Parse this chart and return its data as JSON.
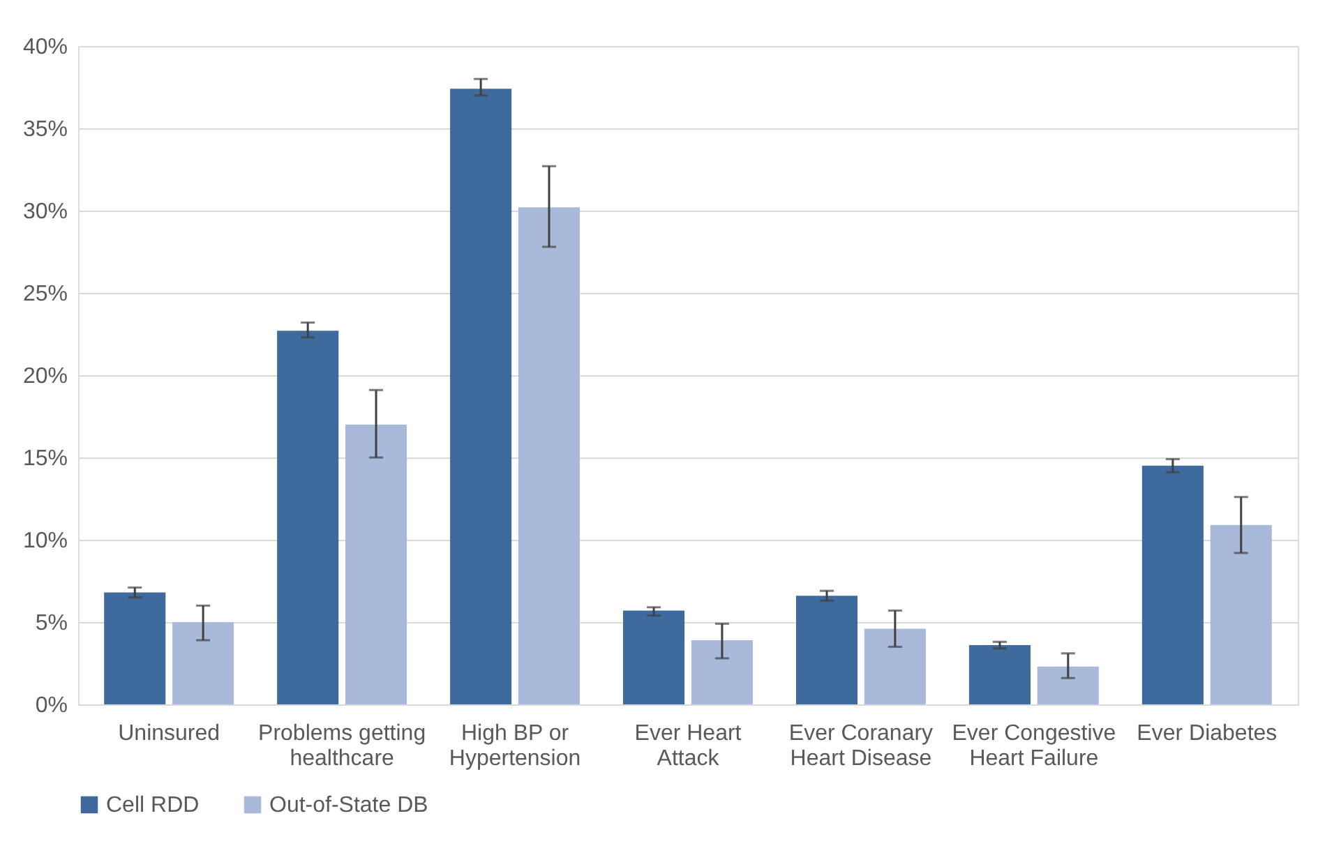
{
  "chart_data": {
    "type": "bar",
    "categories": [
      "Uninsured",
      "Problems getting healthcare",
      "High BP or Hypertension",
      "Ever Heart Attack",
      "Ever Coranary Heart Disease",
      "Ever Congestive Heart Failure",
      "Ever Diabetes"
    ],
    "series": [
      {
        "name": "Cell RDD",
        "color": "#3e6a9e",
        "values": [
          6.8,
          22.7,
          37.4,
          5.7,
          6.6,
          3.6,
          14.5
        ],
        "errors": [
          [
            6.5,
            7.1
          ],
          [
            22.3,
            23.2
          ],
          [
            37.0,
            38.0
          ],
          [
            5.4,
            5.9
          ],
          [
            6.3,
            6.9
          ],
          [
            3.4,
            3.8
          ],
          [
            14.1,
            14.9
          ]
        ]
      },
      {
        "name": "Out-of-State DB",
        "color": "#a9b9d9",
        "values": [
          5.0,
          17.0,
          30.2,
          3.9,
          4.6,
          2.3,
          10.9
        ],
        "errors": [
          [
            3.9,
            6.0
          ],
          [
            15.0,
            19.1
          ],
          [
            27.8,
            32.7
          ],
          [
            2.8,
            4.9
          ],
          [
            3.5,
            5.7
          ],
          [
            1.6,
            3.1
          ],
          [
            9.2,
            12.6
          ]
        ]
      }
    ],
    "ylim": [
      0,
      40
    ],
    "yticks": [
      {
        "value": 0,
        "label": "0%"
      },
      {
        "value": 5,
        "label": "5%"
      },
      {
        "value": 10,
        "label": "10%"
      },
      {
        "value": 15,
        "label": "15%"
      },
      {
        "value": 20,
        "label": "20%"
      },
      {
        "value": 25,
        "label": "25%"
      },
      {
        "value": 30,
        "label": "30%"
      },
      {
        "value": 35,
        "label": "35%"
      },
      {
        "value": 40,
        "label": "40%"
      }
    ],
    "grid": "y",
    "legend": "bottom"
  }
}
